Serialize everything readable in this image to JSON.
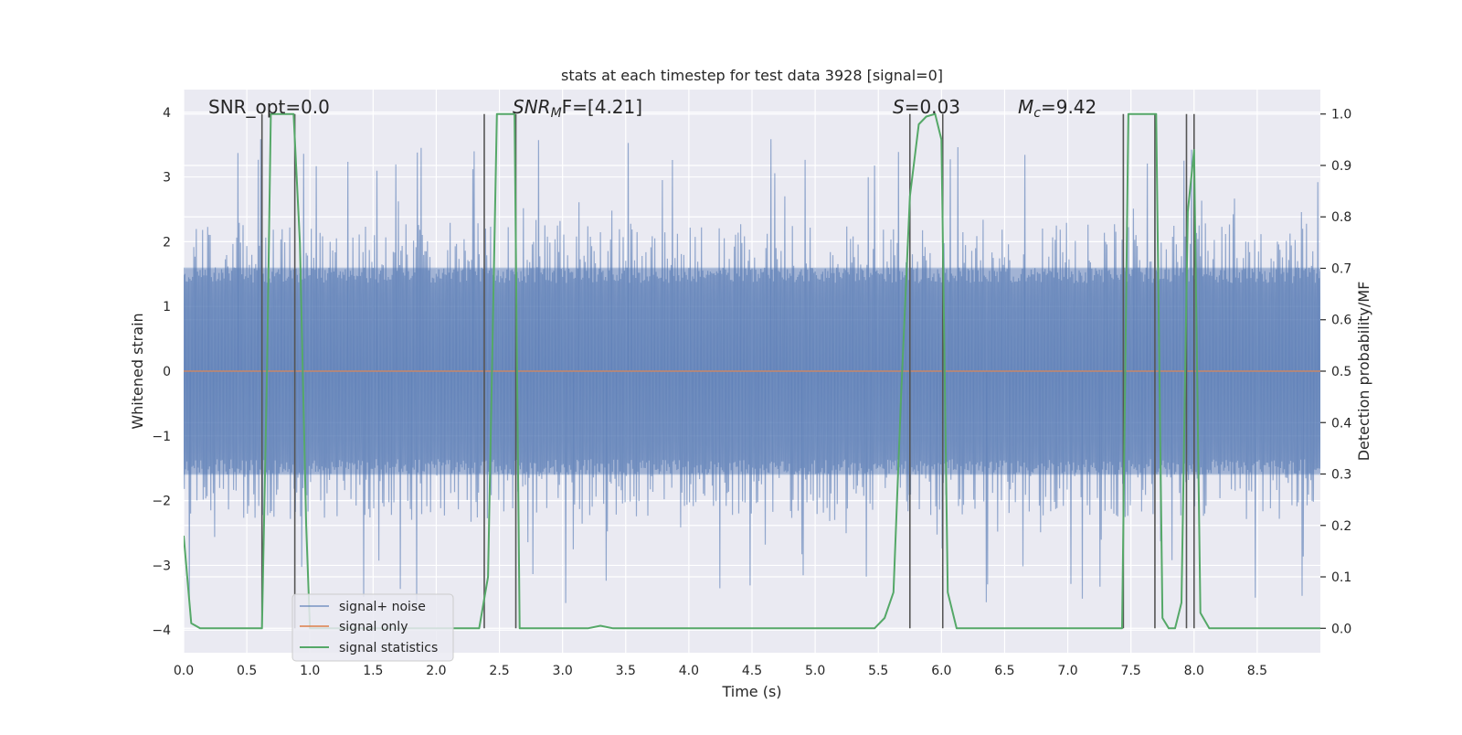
{
  "chart_data": {
    "type": "line",
    "title": "stats at each timestep for test data 3928 [signal=0]",
    "xlabel": "Time (s)",
    "ylabel_left": "Whitened strain",
    "ylabel_right": "Detection probability/MF",
    "xlim": [
      0,
      9
    ],
    "ylim_left": [
      -4.35,
      4.35
    ],
    "ylim_right": [
      -0.0475,
      1.0475
    ],
    "grid": true,
    "legend_placement": "lower-left",
    "x_ticks": [
      "0.0",
      "0.5",
      "1.0",
      "1.5",
      "2.0",
      "2.5",
      "3.0",
      "3.5",
      "4.0",
      "4.5",
      "5.0",
      "5.5",
      "6.0",
      "6.5",
      "7.0",
      "7.5",
      "8.0",
      "8.5"
    ],
    "x_tick_values": [
      0,
      0.5,
      1,
      1.5,
      2,
      2.5,
      3,
      3.5,
      4,
      4.5,
      5,
      5.5,
      6,
      6.5,
      7,
      7.5,
      8,
      8.5
    ],
    "y_ticks_left": [
      "−4",
      "−3",
      "−2",
      "−1",
      "0",
      "1",
      "2",
      "3",
      "4"
    ],
    "y_tick_values_left": [
      -4,
      -3,
      -2,
      -1,
      0,
      1,
      2,
      3,
      4
    ],
    "y_ticks_right": [
      "0.0",
      "0.1",
      "0.2",
      "0.3",
      "0.4",
      "0.5",
      "0.6",
      "0.7",
      "0.8",
      "0.9",
      "1.0"
    ],
    "y_tick_values_right": [
      0,
      0.1,
      0.2,
      0.3,
      0.4,
      0.5,
      0.6,
      0.7,
      0.8,
      0.9,
      1.0
    ],
    "annotations": {
      "snr_opt": "SNR_opt=0.0",
      "snr_mf_main": "SNR",
      "snr_mf_sub": "M",
      "snr_mf_rest": "F=[4.21]",
      "s_main": "S",
      "s_rest": "=0.03",
      "mc_main": "M",
      "mc_sub": "c",
      "mc_rest": "=9.42"
    },
    "series": [
      {
        "name": "signal+ noise",
        "color": "#4c72b0",
        "axis": "left",
        "envelope_abs": 1.6,
        "spike_max": 3.6,
        "t_start": 0.0,
        "t_end": 9.0
      },
      {
        "name": "signal only",
        "color": "#dd8452",
        "axis": "left",
        "x": [
          0,
          9
        ],
        "y": [
          0,
          0
        ]
      },
      {
        "name": "signal statistics",
        "color": "#55a868",
        "axis": "right",
        "x": [
          0.0,
          0.06,
          0.13,
          0.2,
          0.4,
          0.56,
          0.62,
          0.66,
          0.69,
          0.73,
          0.8,
          0.87,
          0.92,
          0.97,
          1.0,
          1.05,
          2.2,
          2.34,
          2.41,
          2.48,
          2.62,
          2.66,
          2.73,
          3.0,
          3.2,
          3.3,
          3.4,
          3.5,
          5.47,
          5.55,
          5.62,
          5.68,
          5.75,
          5.82,
          5.88,
          5.95,
          6.0,
          6.05,
          6.12,
          7.43,
          7.48,
          7.53,
          7.65,
          7.7,
          7.75,
          7.8,
          7.85,
          7.9,
          7.95,
          8.0,
          8.05,
          8.12,
          8.2,
          9.0
        ],
        "y": [
          0.18,
          0.01,
          0.0,
          0.0,
          0.0,
          0.0,
          0.0,
          0.5,
          1.0,
          1.0,
          1.0,
          1.0,
          0.75,
          0.2,
          0.0,
          0.0,
          0.0,
          0.0,
          0.1,
          1.0,
          1.0,
          0.0,
          0.0,
          0.0,
          0.0,
          0.005,
          0.0,
          0.0,
          0.0,
          0.02,
          0.07,
          0.45,
          0.84,
          0.98,
          0.995,
          1.0,
          0.95,
          0.07,
          0.0,
          0.0,
          1.0,
          1.0,
          1.0,
          1.0,
          0.02,
          0.0,
          0.0,
          0.05,
          0.81,
          0.93,
          0.03,
          0.0,
          0.0,
          0.0
        ]
      }
    ],
    "vertical_markers": [
      0.62,
      0.88,
      2.38,
      2.63,
      5.75,
      6.01,
      7.44,
      7.69,
      7.94,
      8.0
    ]
  }
}
